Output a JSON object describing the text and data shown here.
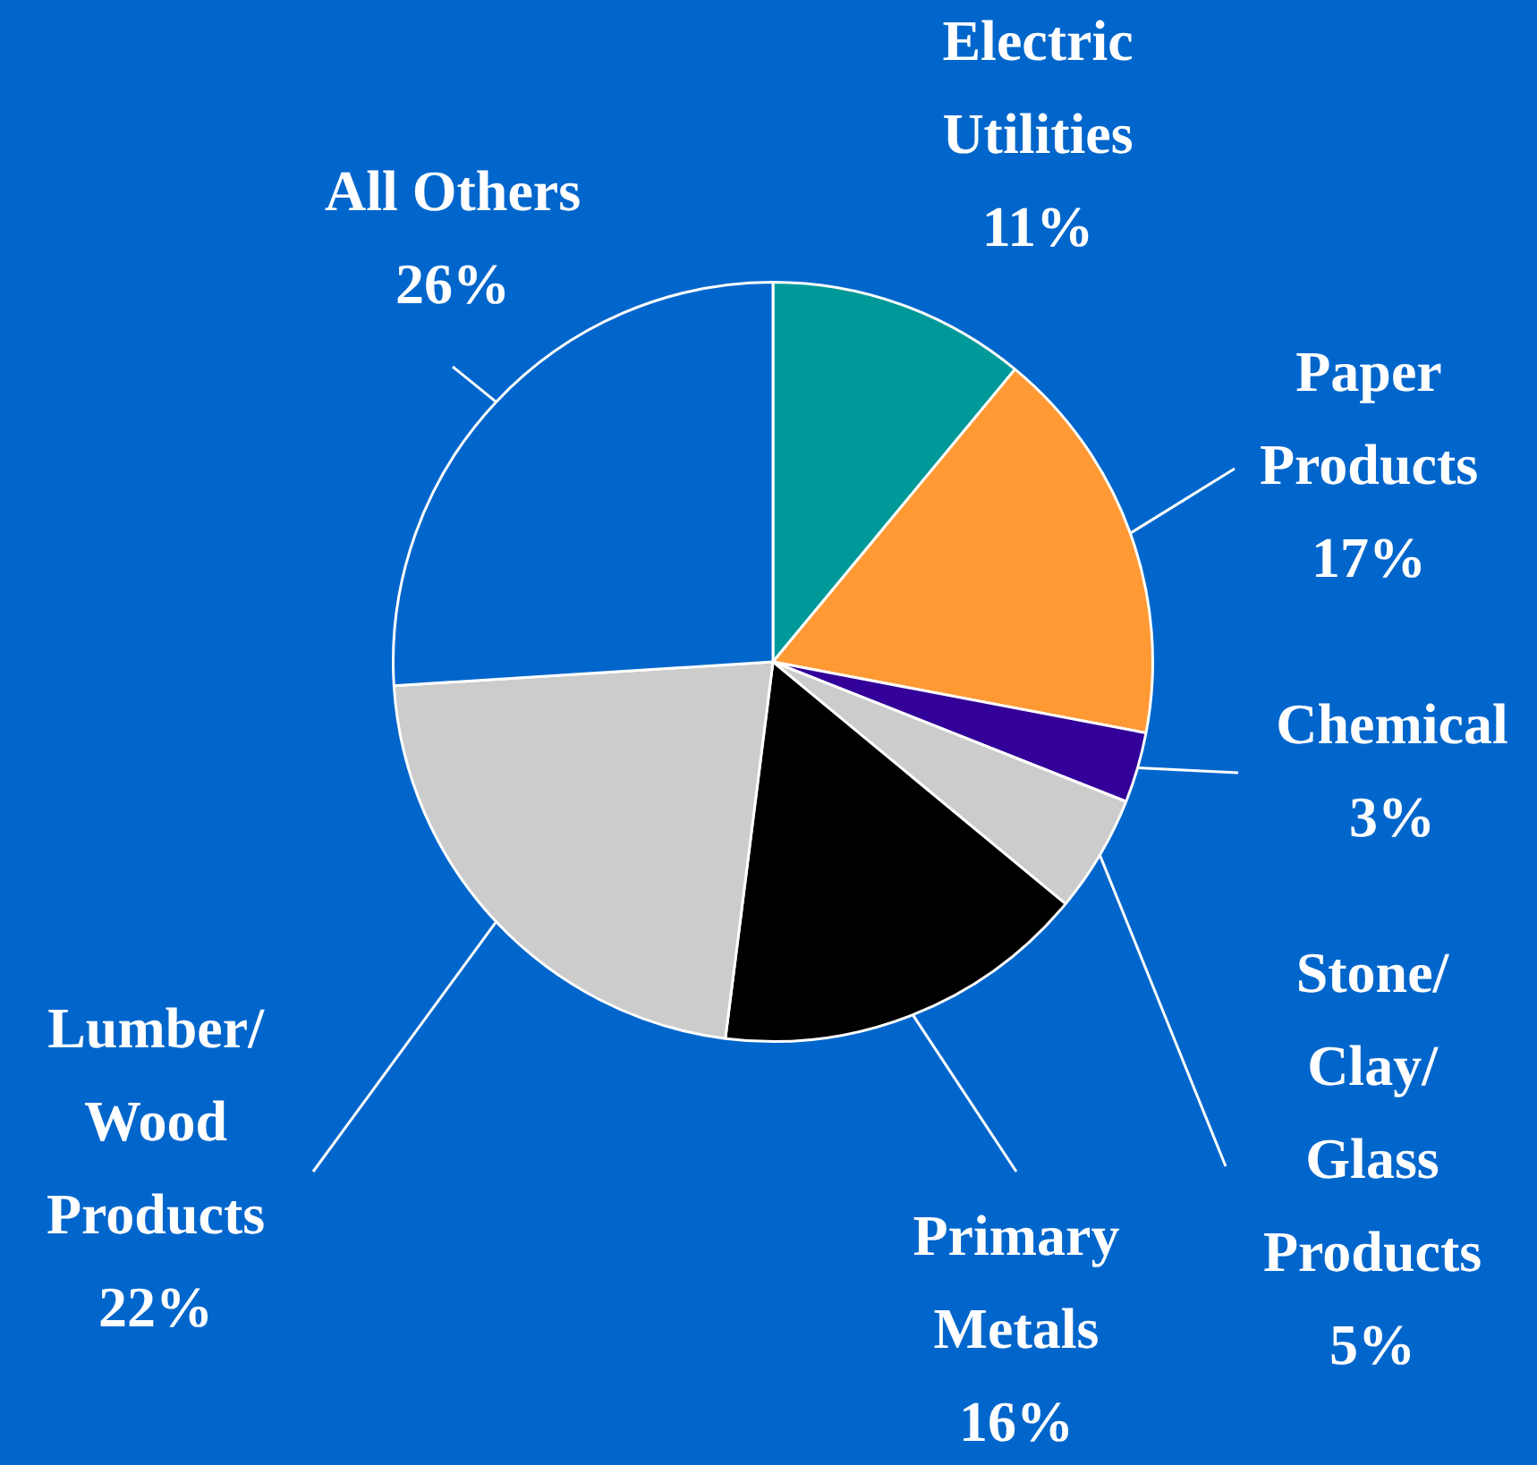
{
  "chart_data": {
    "type": "pie",
    "categories": [
      "Electric\nUtilities",
      "Paper\nProducts",
      "Chemical",
      "Stone/\nClay/\nGlass\nProducts",
      "Primary\nMetals",
      "Lumber/\nWood\nProducts",
      "All Others"
    ],
    "values": [
      11,
      17,
      3,
      5,
      16,
      22,
      26
    ],
    "value_labels": [
      "11%",
      "17%",
      "3%",
      "5%",
      "16%",
      "22%",
      "26%"
    ],
    "colors": [
      "#009999",
      "#ff9933",
      "#330099",
      "#cccccc",
      "#000000",
      "#cccccc",
      "#0066cc"
    ],
    "legend": false
  }
}
